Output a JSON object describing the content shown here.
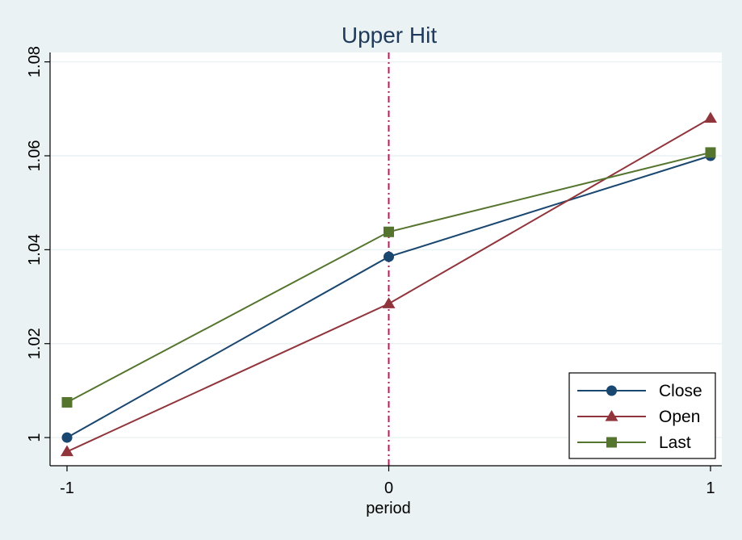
{
  "chart_data": {
    "type": "line",
    "title": "Upper Hit",
    "xlabel": "period",
    "ylabel": "",
    "x": [
      -1,
      0,
      1
    ],
    "xticks": [
      -1,
      0,
      1
    ],
    "xtick_labels": [
      "-1",
      "0",
      "1"
    ],
    "xlim": [
      -1.0,
      1.0
    ],
    "yticks": [
      1,
      1.02,
      1.04,
      1.06,
      1.08
    ],
    "ytick_labels": [
      "1",
      "1.02",
      "1.04",
      "1.06",
      "1.08"
    ],
    "ylim": [
      0.994,
      1.082
    ],
    "grid": true,
    "reference_line": {
      "x": 0,
      "style": "dash-dot",
      "color": "#c0185a"
    },
    "legend_position": "bottom-right",
    "series": [
      {
        "name": "Close",
        "values": [
          1.0,
          1.0385,
          1.06
        ],
        "color": "#1a476f",
        "marker": "circle"
      },
      {
        "name": "Open",
        "values": [
          0.997,
          1.0285,
          1.068
        ],
        "color": "#90353b",
        "marker": "triangle"
      },
      {
        "name": "Last",
        "values": [
          1.0075,
          1.0438,
          1.0607
        ],
        "color": "#55752f",
        "marker": "square"
      }
    ]
  }
}
